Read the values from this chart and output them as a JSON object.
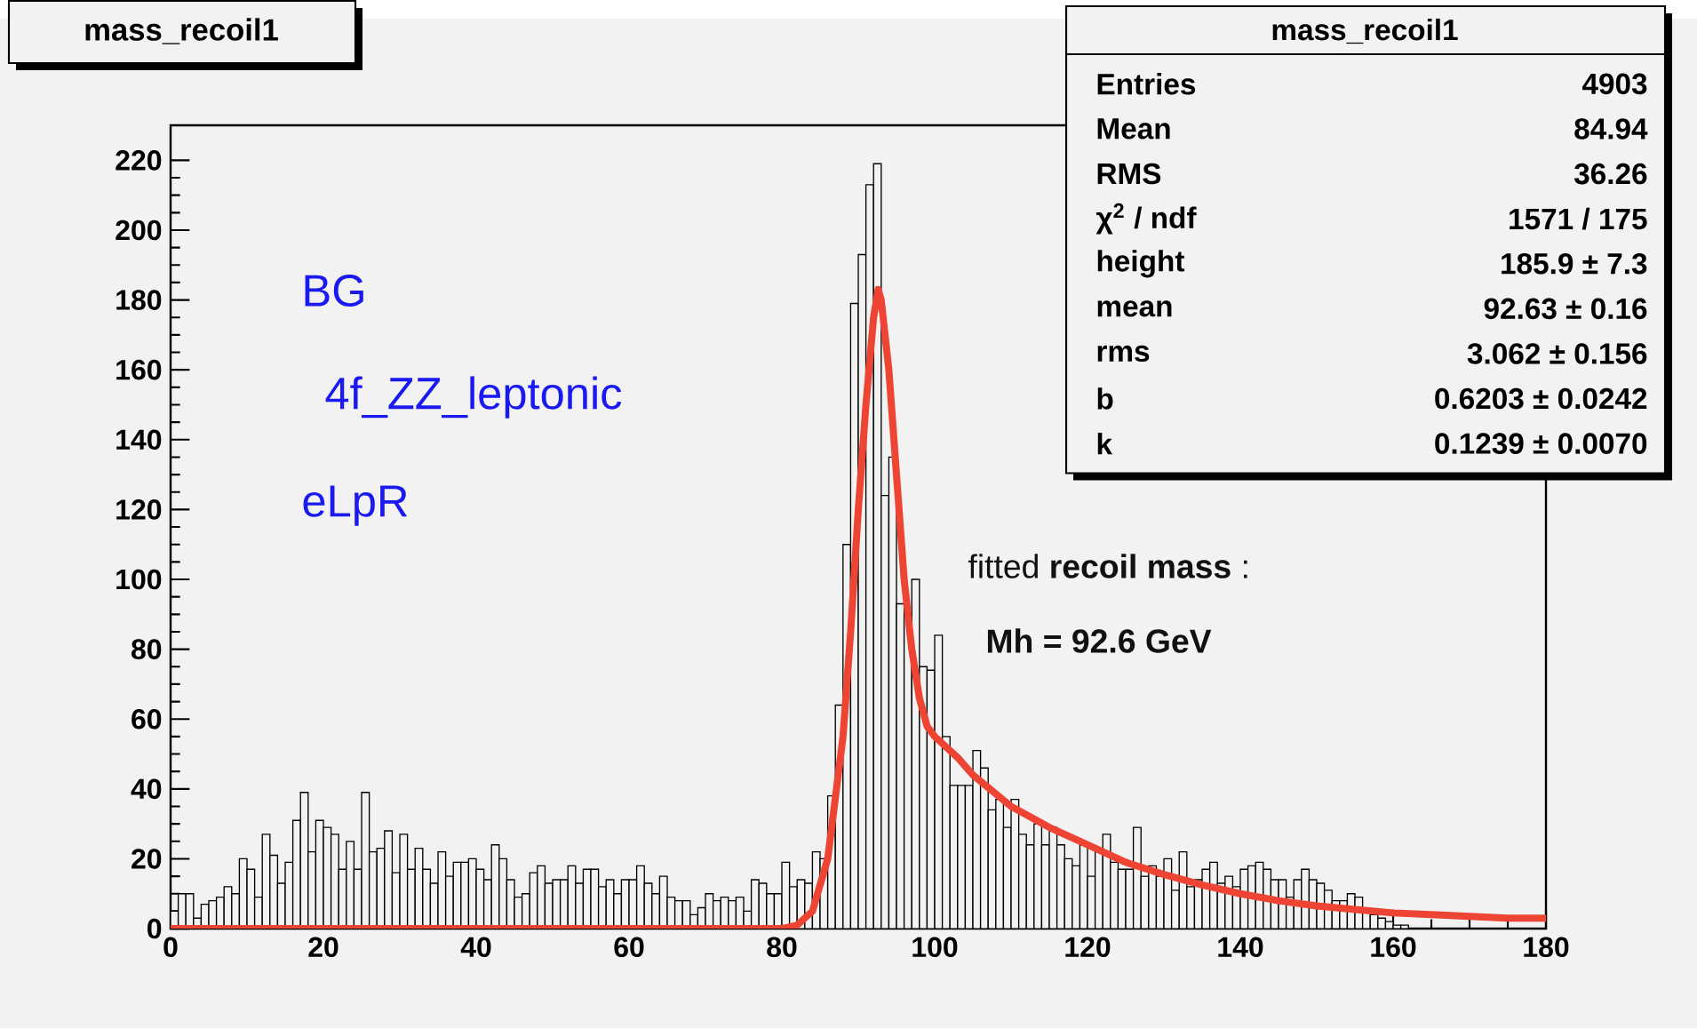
{
  "chart_data": {
    "type": "histogram",
    "title": "mass_recoil1",
    "xlim": [
      0,
      180
    ],
    "ylim": [
      0,
      230
    ],
    "xticks": [
      0,
      20,
      40,
      60,
      80,
      100,
      120,
      140,
      160,
      180
    ],
    "yticks": [
      0,
      20,
      40,
      60,
      80,
      100,
      120,
      140,
      160,
      180,
      200,
      220
    ],
    "series": [
      {
        "color": "#000000",
        "bins": [
          0,
          1,
          2,
          3,
          4,
          5,
          6,
          7,
          8,
          9,
          10,
          11,
          12,
          13,
          14,
          15,
          16,
          17,
          18,
          19,
          20,
          21,
          22,
          23,
          24,
          25,
          26,
          27,
          28,
          29,
          30,
          31,
          32,
          33,
          34,
          35,
          36,
          37,
          38,
          39,
          40,
          41,
          42,
          43,
          44,
          45,
          46,
          47,
          48,
          49,
          50,
          51,
          52,
          53,
          54,
          55,
          56,
          57,
          58,
          59,
          60,
          61,
          62,
          63,
          64,
          65,
          66,
          67,
          68,
          69,
          70,
          71,
          72,
          73,
          74,
          75,
          76,
          77,
          78,
          79,
          80,
          81,
          82,
          83,
          84,
          85,
          86,
          87,
          88,
          89,
          90,
          91,
          92,
          93,
          94,
          95,
          96,
          97,
          98,
          99,
          100,
          101,
          102,
          103,
          104,
          105,
          106,
          107,
          108,
          109,
          110,
          111,
          112,
          113,
          114,
          115,
          116,
          117,
          118,
          119,
          120,
          121,
          122,
          123,
          124,
          125,
          126,
          127,
          128,
          129,
          130,
          131,
          132,
          133,
          134,
          135,
          136,
          137,
          138,
          139,
          140,
          141,
          142,
          143,
          144,
          145,
          146,
          147,
          148,
          149,
          150,
          151,
          152,
          153,
          154,
          155,
          156,
          157,
          158,
          159,
          160,
          161,
          162,
          163,
          164,
          165,
          166,
          167,
          168,
          169,
          170,
          171,
          172,
          173,
          174,
          175,
          176,
          177,
          178,
          179,
          180
        ],
        "values": [
          5,
          10,
          10,
          3,
          7,
          8,
          9,
          12,
          10,
          20,
          17,
          9,
          27,
          21,
          13,
          19,
          31,
          39,
          22,
          31,
          29,
          27,
          17,
          25,
          17,
          39,
          22,
          23,
          28,
          16,
          27,
          17,
          23,
          17,
          13,
          22,
          15,
          19,
          19,
          20,
          17,
          14,
          24,
          20,
          14,
          9,
          10,
          16,
          18,
          13,
          14,
          14,
          18,
          13,
          17,
          17,
          12,
          14,
          10,
          14,
          14,
          18,
          13,
          10,
          15,
          9,
          8,
          8,
          4,
          6,
          10,
          8,
          9,
          8,
          9,
          5,
          14,
          13,
          10,
          10,
          19,
          12,
          14,
          13,
          22,
          20,
          38,
          64,
          110,
          179,
          193,
          213,
          219,
          124,
          135,
          93,
          90,
          100,
          75,
          74,
          84,
          55,
          41,
          41,
          41,
          51,
          46,
          34,
          37,
          29,
          37,
          27,
          24,
          30,
          24,
          29,
          24,
          20,
          18,
          24,
          15,
          22,
          27,
          19,
          17,
          17,
          29,
          15,
          18,
          15,
          20,
          11,
          22,
          12,
          14,
          17,
          19,
          13,
          15,
          12,
          17,
          18,
          19,
          17,
          14,
          14,
          9,
          14,
          17,
          14,
          13,
          11,
          8,
          8,
          10,
          9,
          5,
          4,
          3,
          2,
          1,
          1,
          0,
          0,
          0,
          0,
          0,
          0,
          0,
          0,
          0,
          0,
          0,
          0,
          0,
          0,
          0,
          0,
          0,
          0
        ]
      },
      {
        "type": "line",
        "color": "#ee4433",
        "x": [
          0,
          80,
          82,
          84,
          86,
          88,
          89,
          90,
          91,
          92,
          92.6,
          93,
          94,
          95,
          96,
          97,
          98,
          99,
          100,
          102,
          103,
          105,
          110,
          115,
          120,
          125,
          130,
          135,
          140,
          145,
          150,
          155,
          160,
          165,
          170,
          175,
          180
        ],
        "values": [
          0,
          0,
          1,
          5,
          20,
          55,
          85,
          120,
          150,
          175,
          183,
          180,
          160,
          130,
          100,
          80,
          66,
          58,
          55,
          51,
          49,
          44,
          35,
          29,
          24,
          19,
          15.5,
          12.5,
          10,
          8,
          6.5,
          5.5,
          4.5,
          4,
          3.5,
          3,
          3
        ]
      }
    ],
    "annotations": [
      "BG",
      "4f_ZZ_leptonic",
      "eLpR",
      "fitted **recoil mass** :",
      "Mh = 92.6 GeV",
      "mass_recoil1",
      "Entries",
      "4903",
      "Mean",
      "84.94",
      "RMS",
      "36.26",
      "χ$^{2}$ / ndf",
      "1571 / 175",
      "height",
      "185.9 ± 7.3",
      "mean",
      "92.63 ± 0.16",
      "rms",
      "3.062 ± 0.156",
      "b",
      "0.6203 ± 0.0242",
      "k",
      "0.1239 ± 0.0070"
    ]
  }
}
